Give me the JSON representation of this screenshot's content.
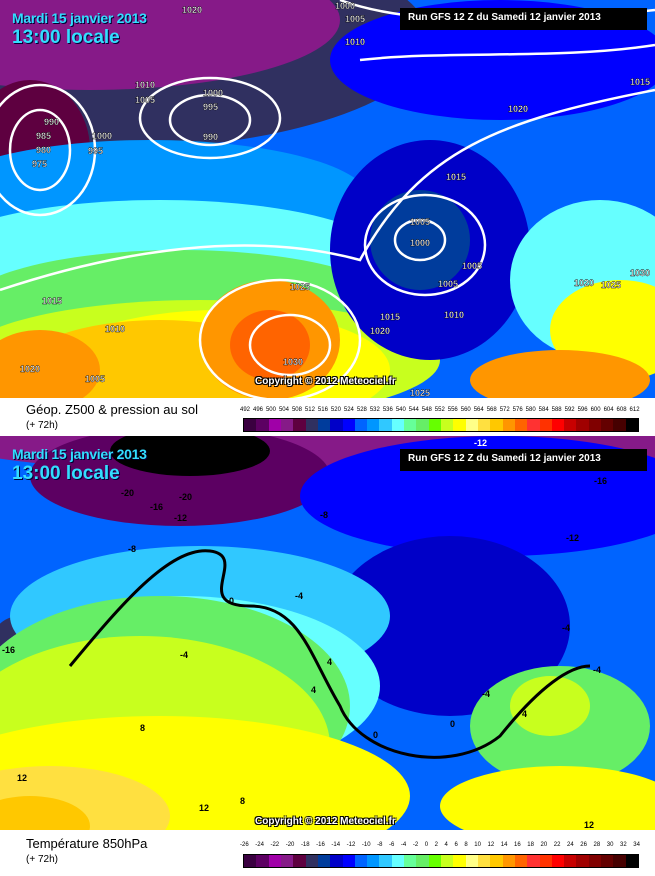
{
  "top_map": {
    "date": "Mardi 15 janvier 2013",
    "time": "13:00 locale",
    "run": "Run GFS 12 Z du Samedi 12 janvier 2013",
    "copyright": "Copyright © 2012 Meteociel.fr",
    "isobar_labels": [
      "1020",
      "1000",
      "1005",
      "1010",
      "1010",
      "1005",
      "1000",
      "995",
      "990",
      "990",
      "985",
      "980",
      "975",
      "1000",
      "995",
      "1020",
      "1015",
      "1015",
      "1005",
      "1000",
      "1005",
      "1005",
      "1010",
      "1015",
      "1020",
      "1025",
      "1030",
      "1015",
      "1010",
      "1020",
      "1005",
      "1020",
      "1025",
      "1030",
      "1025"
    ],
    "legend": {
      "title": "Géop. Z500 & pression au sol",
      "subtitle": "(+ 72h)",
      "ticks": [
        "492",
        "496",
        "500",
        "504",
        "508",
        "512",
        "516",
        "520",
        "524",
        "528",
        "532",
        "536",
        "540",
        "544",
        "548",
        "552",
        "556",
        "560",
        "564",
        "568",
        "572",
        "576",
        "580",
        "584",
        "588",
        "592",
        "596",
        "600",
        "604",
        "608",
        "612"
      ]
    }
  },
  "bottom_map": {
    "date": "Mardi 15 janvier 2013",
    "time": "13:00 locale",
    "run": "Run GFS 12 Z du Samedi 12 janvier 2013",
    "copyright": "Copyright © 2012 Meteociel.fr",
    "isotherm_labels": [
      "-24",
      "-16",
      "-20",
      "-20",
      "-16",
      "-12",
      "-8",
      "-8",
      "-12",
      "-16",
      "0",
      "-4",
      "-4",
      "-16",
      "-4",
      "4",
      "4",
      "-4",
      "-4",
      "4",
      "0",
      "0",
      "8",
      "12",
      "12",
      "8",
      "12",
      "-12"
    ],
    "legend": {
      "title": "Température 850hPa",
      "subtitle": "(+ 72h)",
      "ticks": [
        "-26",
        "-24",
        "-22",
        "-20",
        "-18",
        "-16",
        "-14",
        "-12",
        "-10",
        "-8",
        "-6",
        "-4",
        "-2",
        "0",
        "2",
        "4",
        "6",
        "8",
        "10",
        "12",
        "14",
        "16",
        "18",
        "20",
        "22",
        "24",
        "26",
        "28",
        "30",
        "32",
        "34"
      ]
    }
  },
  "color_scale": [
    "#3a0040",
    "#5c0062",
    "#a000a8",
    "#861a88",
    "#5e0040",
    "#303060",
    "#003c9c",
    "#0000c8",
    "#0000ff",
    "#0064ff",
    "#0096ff",
    "#30c8ff",
    "#66ffff",
    "#66ff99",
    "#66ee66",
    "#66ff00",
    "#c8ff1e",
    "#ffff00",
    "#ffff88",
    "#ffe040",
    "#ffc800",
    "#ff9600",
    "#ff6400",
    "#ff3232",
    "#ff3200",
    "#ff0000",
    "#c80000",
    "#a00000",
    "#800000",
    "#640000",
    "#460000",
    "#000000"
  ]
}
